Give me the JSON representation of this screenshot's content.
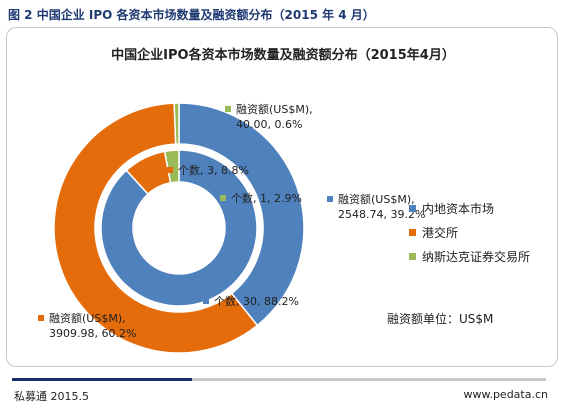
{
  "figure_title": "图 2  中国企业 IPO 各资本市场数量及融资额分布（2015 年 4 月）",
  "footer": {
    "source": "私募通 2015.5",
    "website": "www.pedata.cn"
  },
  "colors": {
    "inland": "#4f81bd",
    "hk": "#e46c0a",
    "nasdaq": "#9bbb59"
  },
  "chart_data": {
    "type": "donut",
    "title": "中国企业IPO各资本市场数量及融资额分布（2015年4月）",
    "categories": [
      "内地资本市场",
      "港交所",
      "纳斯达克证券交易所"
    ],
    "legend_position": "right",
    "unit_note": "融资额单位：US$M",
    "series": [
      {
        "name": "个数",
        "ring": "inner",
        "values": [
          30,
          3,
          1
        ],
        "labels": [
          "个数, 30, 88.2%",
          "个数, 3, 8.8%",
          "个数, 1, 2.9%"
        ]
      },
      {
        "name": "融资额(US$M)",
        "ring": "outer",
        "values": [
          2548.74,
          3909.98,
          40.0
        ],
        "labels": [
          [
            "融资额(US$M),",
            "2548.74, 39.2%"
          ],
          [
            "融资额(US$M),",
            "3909.98, 60.2%"
          ],
          [
            "融资额(US$M),",
            "40.00, 0.6%"
          ]
        ]
      }
    ]
  }
}
